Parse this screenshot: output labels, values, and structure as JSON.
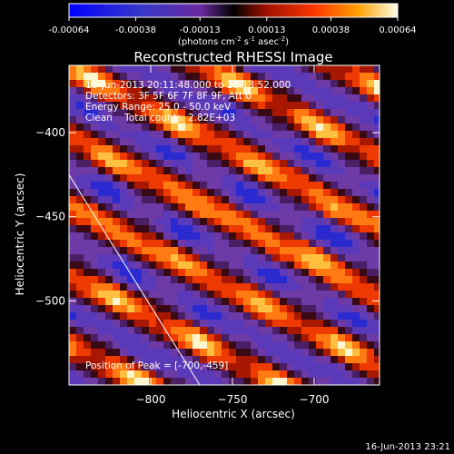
{
  "chart_data": {
    "type": "heatmap",
    "title": "Reconstructed RHESSI Image",
    "xlabel": "Heliocentric X (arcsec)",
    "ylabel": "Heliocentric Y (arcsec)",
    "xlim": [
      -850,
      -660
    ],
    "ylim": [
      -550,
      -360
    ],
    "x_ticks": [
      -800,
      -750,
      -700
    ],
    "y_ticks": [
      -400,
      -450,
      -500
    ],
    "colorbar": {
      "range": [
        -0.00064,
        0.00064
      ],
      "tick_values": [
        -0.00064,
        -0.00038,
        -0.00013,
        0.00013,
        0.00038,
        0.00064
      ],
      "tick_labels": [
        "-0.00064",
        "-0.00038",
        "-0.00013",
        "0.00013",
        "0.00038",
        "0.00064"
      ],
      "unit_label_parts": [
        "(photons cm",
        "-2",
        " s",
        "-1",
        " asec",
        "-2",
        ")"
      ]
    },
    "annotations": {
      "time_range": "16-Jun-2013 20:11:48.000 to 20:13:52.000",
      "detectors": "Detectors: 3F 5F 6F 7F 8F 9F, Att 0",
      "energy_range": "Energy Range: 25.0 - 50.0 keV",
      "clean_totals": "Clean    Total counts: 2.82E+03",
      "peak_position": "Position of Peak = [-700,-459]"
    },
    "limb_line": {
      "from": [
        -850,
        -425
      ],
      "to": [
        -770,
        -550
      ]
    },
    "timestamp": "16-Jun-2013 23:21"
  }
}
